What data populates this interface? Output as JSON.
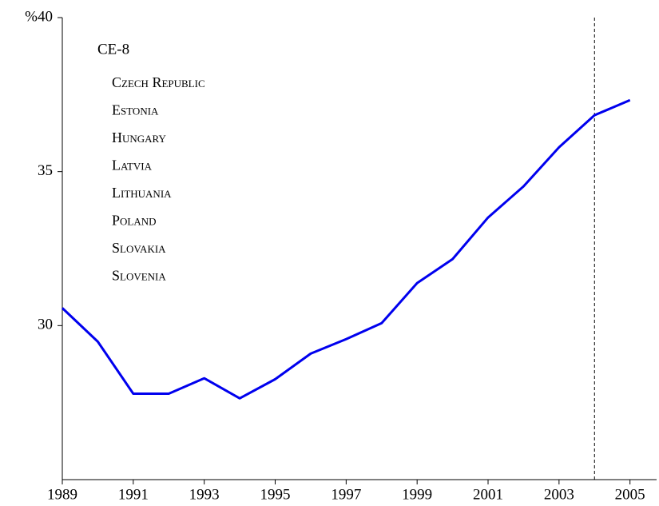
{
  "chart_data": {
    "type": "line",
    "x": [
      1989,
      1990,
      1991,
      1992,
      1993,
      1994,
      1995,
      1996,
      1997,
      1998,
      1999,
      2000,
      2001,
      2002,
      2003,
      2004,
      2005
    ],
    "series": [
      {
        "name": "CE-8",
        "color": "#0000ee",
        "values": [
          30.57,
          29.48,
          27.79,
          27.79,
          28.29,
          27.64,
          28.26,
          29.09,
          29.56,
          30.08,
          31.38,
          32.16,
          33.51,
          34.52,
          35.79,
          36.83,
          37.32
        ]
      }
    ],
    "legend_items": [
      "Czech Republic",
      "Estonia",
      "Hungary",
      "Latvia",
      "Lithuania",
      "Poland",
      "Slovakia",
      "Slovenia"
    ],
    "vline": {
      "x": 2004,
      "style": "dashed",
      "color": "#000000"
    },
    "xlim": [
      1989,
      2005.75
    ],
    "ylim": [
      25,
      40
    ],
    "xticks": [
      1989,
      1991,
      1993,
      1995,
      1997,
      1999,
      2001,
      2003,
      2005
    ],
    "yticks": [
      30,
      35,
      {
        "value": 40,
        "label": "%40"
      }
    ],
    "grid": false
  }
}
